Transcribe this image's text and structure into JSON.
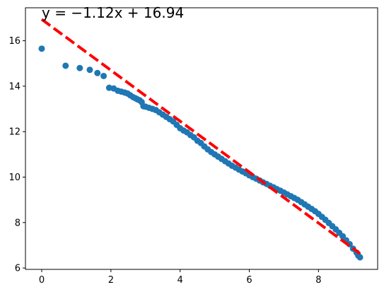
{
  "chart_data": {
    "type": "scatter",
    "title": "",
    "xlabel": "",
    "ylabel": "",
    "xlim": [
      -0.47,
      9.71
    ],
    "ylim": [
      5.94,
      17.45
    ],
    "grid": false,
    "x_ticks": [
      0,
      2,
      4,
      6,
      8
    ],
    "y_ticks": [
      6,
      8,
      10,
      12,
      14,
      16
    ],
    "annotation": "$y=-1.12x+16.94$",
    "annotation_text": "y = −1.12x + 16.94",
    "fit_line": {
      "slope": -1.12,
      "intercept": 16.94,
      "x_range": [
        0,
        9.2
      ],
      "color": "#ff0000",
      "style": "dashed"
    },
    "marker_color": "#1f77b4",
    "series": [
      {
        "points": [
          [
            0.0,
            15.65
          ],
          [
            0.69,
            14.9
          ],
          [
            1.1,
            14.8
          ],
          [
            1.39,
            14.72
          ],
          [
            1.61,
            14.58
          ],
          [
            1.79,
            14.45
          ],
          [
            1.95,
            13.93
          ],
          [
            2.08,
            13.9
          ],
          [
            2.2,
            13.8
          ],
          [
            2.3,
            13.76
          ],
          [
            2.4,
            13.72
          ],
          [
            2.48,
            13.68
          ],
          [
            2.56,
            13.6
          ],
          [
            2.64,
            13.52
          ],
          [
            2.71,
            13.47
          ],
          [
            2.77,
            13.42
          ],
          [
            2.83,
            13.38
          ],
          [
            2.89,
            13.3
          ],
          [
            2.94,
            13.12
          ],
          [
            3.0,
            13.1
          ],
          [
            3.1,
            13.05
          ],
          [
            3.2,
            13.0
          ],
          [
            3.3,
            12.95
          ],
          [
            3.4,
            12.85
          ],
          [
            3.5,
            12.75
          ],
          [
            3.6,
            12.65
          ],
          [
            3.7,
            12.55
          ],
          [
            3.8,
            12.45
          ],
          [
            3.9,
            12.3
          ],
          [
            4.0,
            12.15
          ],
          [
            4.1,
            12.05
          ],
          [
            4.2,
            11.97
          ],
          [
            4.3,
            11.85
          ],
          [
            4.4,
            11.75
          ],
          [
            4.5,
            11.6
          ],
          [
            4.6,
            11.5
          ],
          [
            4.7,
            11.35
          ],
          [
            4.8,
            11.22
          ],
          [
            4.9,
            11.1
          ],
          [
            5.0,
            11.0
          ],
          [
            5.1,
            10.9
          ],
          [
            5.2,
            10.8
          ],
          [
            5.3,
            10.7
          ],
          [
            5.4,
            10.6
          ],
          [
            5.5,
            10.5
          ],
          [
            5.6,
            10.42
          ],
          [
            5.7,
            10.33
          ],
          [
            5.8,
            10.25
          ],
          [
            5.9,
            10.17
          ],
          [
            6.0,
            10.08
          ],
          [
            6.1,
            10.0
          ],
          [
            6.2,
            9.93
          ],
          [
            6.3,
            9.85
          ],
          [
            6.4,
            9.77
          ],
          [
            6.5,
            9.7
          ],
          [
            6.6,
            9.62
          ],
          [
            6.7,
            9.55
          ],
          [
            6.8,
            9.47
          ],
          [
            6.9,
            9.4
          ],
          [
            7.0,
            9.32
          ],
          [
            7.1,
            9.24
          ],
          [
            7.2,
            9.16
          ],
          [
            7.3,
            9.08
          ],
          [
            7.4,
            9.0
          ],
          [
            7.5,
            8.9
          ],
          [
            7.6,
            8.8
          ],
          [
            7.7,
            8.7
          ],
          [
            7.8,
            8.6
          ],
          [
            7.9,
            8.5
          ],
          [
            8.0,
            8.38
          ],
          [
            8.1,
            8.25
          ],
          [
            8.2,
            8.12
          ],
          [
            8.3,
            7.98
          ],
          [
            8.4,
            7.84
          ],
          [
            8.5,
            7.7
          ],
          [
            8.6,
            7.55
          ],
          [
            8.7,
            7.4
          ],
          [
            8.8,
            7.22
          ],
          [
            8.9,
            7.05
          ],
          [
            9.0,
            6.85
          ],
          [
            9.1,
            6.68
          ],
          [
            9.15,
            6.55
          ],
          [
            9.2,
            6.47
          ]
        ]
      }
    ]
  }
}
